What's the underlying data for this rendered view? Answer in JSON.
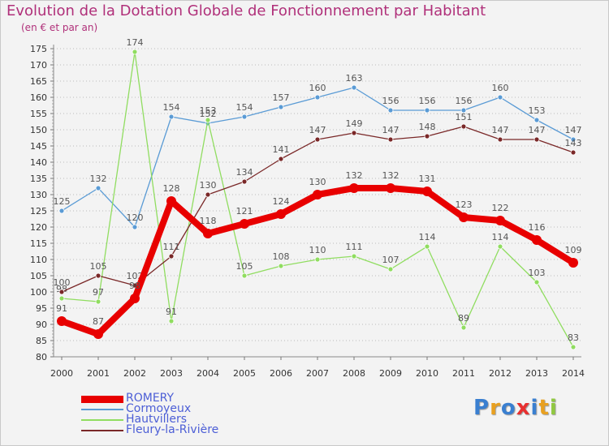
{
  "chart_data": {
    "type": "line",
    "title": "Evolution de la Dotation Globale de Fonctionnement par Habitant",
    "subtitle": "(en € et par an)",
    "x": [
      "2000",
      "2001",
      "2002",
      "2003",
      "2004",
      "2005",
      "2006",
      "2007",
      "2008",
      "2009",
      "2010",
      "2011",
      "2012",
      "2013",
      "2014"
    ],
    "ylim": [
      80,
      175
    ],
    "ytick_step": 5,
    "grid": "horizontal dotted",
    "series": [
      {
        "name": "ROMERY",
        "color": "#e80000",
        "emphasis": true,
        "values": [
          91,
          87,
          98,
          128,
          118,
          121,
          124,
          130,
          132,
          132,
          131,
          123,
          122,
          116,
          109
        ]
      },
      {
        "name": "Cormoyeux",
        "color": "#5a9bd5",
        "emphasis": false,
        "values": [
          125,
          132,
          120,
          154,
          152,
          154,
          157,
          160,
          163,
          156,
          156,
          156,
          160,
          153,
          147
        ]
      },
      {
        "name": "Hautvillers",
        "color": "#90dd60",
        "emphasis": false,
        "values": [
          98,
          97,
          174,
          91,
          153,
          105,
          108,
          110,
          111,
          107,
          114,
          89,
          114,
          103,
          83
        ]
      },
      {
        "name": "Fleury-la-Rivière",
        "color": "#7a2828",
        "emphasis": false,
        "values": [
          100,
          105,
          102,
          111,
          130,
          134,
          141,
          147,
          149,
          147,
          148,
          151,
          147,
          147,
          143
        ]
      }
    ]
  },
  "logo": {
    "letters": [
      "P",
      "r",
      "o",
      "x",
      "i",
      "t",
      "i"
    ],
    "colors": [
      "#3a7fd0",
      "#e8a020",
      "#3a7fd0",
      "#e83030",
      "#3a7fd0",
      "#e8a020",
      "#90c840"
    ]
  }
}
